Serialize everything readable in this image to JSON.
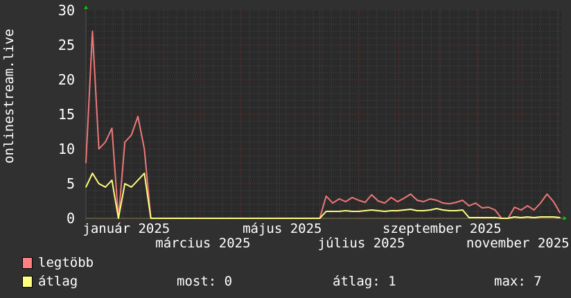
{
  "chart_data": {
    "type": "line",
    "ylabel": "onlinestream.live",
    "ylim": [
      0,
      30
    ],
    "yticks": [
      0,
      5,
      10,
      15,
      20,
      25,
      30
    ],
    "xlim": [
      "2024-12-03",
      "2025-12-04"
    ],
    "xticks": [
      {
        "date": "2025-01-01",
        "label": "január 2025"
      },
      {
        "date": "2025-03-01",
        "label": "március 2025"
      },
      {
        "date": "2025-05-01",
        "label": "május 2025"
      },
      {
        "date": "2025-07-01",
        "label": "július 2025"
      },
      {
        "date": "2025-09-01",
        "label": "szeptember 2025"
      },
      {
        "date": "2025-11-01",
        "label": "november 2025"
      }
    ],
    "grid": true,
    "legend_position": "bottom-left",
    "x": [
      "2024-12-03",
      "2024-12-08",
      "2024-12-13",
      "2024-12-18",
      "2024-12-23",
      "2024-12-28",
      "2025-01-02",
      "2025-01-07",
      "2025-01-12",
      "2025-01-17",
      "2025-01-22",
      "2025-01-27",
      "2025-02-01",
      "2025-02-06",
      "2025-02-11",
      "2025-02-16",
      "2025-02-21",
      "2025-02-26",
      "2025-03-03",
      "2025-03-08",
      "2025-03-13",
      "2025-03-18",
      "2025-03-23",
      "2025-03-28",
      "2025-04-02",
      "2025-04-07",
      "2025-04-12",
      "2025-04-17",
      "2025-04-22",
      "2025-04-27",
      "2025-05-02",
      "2025-05-07",
      "2025-05-12",
      "2025-05-17",
      "2025-05-22",
      "2025-05-27",
      "2025-06-01",
      "2025-06-06",
      "2025-06-11",
      "2025-06-16",
      "2025-06-21",
      "2025-06-26",
      "2025-07-01",
      "2025-07-06",
      "2025-07-11",
      "2025-07-16",
      "2025-07-21",
      "2025-07-26",
      "2025-07-31",
      "2025-08-05",
      "2025-08-10",
      "2025-08-15",
      "2025-08-20",
      "2025-08-25",
      "2025-08-30",
      "2025-09-04",
      "2025-09-09",
      "2025-09-14",
      "2025-09-19",
      "2025-09-24",
      "2025-09-29",
      "2025-10-04",
      "2025-10-09",
      "2025-10-14",
      "2025-10-19",
      "2025-10-24",
      "2025-10-29",
      "2025-11-03",
      "2025-11-08",
      "2025-11-13",
      "2025-11-18",
      "2025-11-23",
      "2025-11-28",
      "2025-12-03"
    ],
    "series": [
      {
        "name": "legtöbb",
        "color": "#f07878",
        "swatch": "#ff8080",
        "values": [
          8,
          27,
          10,
          11,
          13,
          0,
          11,
          12,
          14.7,
          10,
          0,
          0,
          0,
          0,
          0,
          0,
          0,
          0,
          0,
          0,
          0,
          0,
          0,
          0,
          0,
          0,
          0,
          0,
          0,
          0,
          0,
          0,
          0,
          0,
          0,
          0,
          0,
          3.2,
          2.2,
          2.8,
          2.4,
          3,
          2.6,
          2.3,
          3.4,
          2.5,
          2.2,
          3,
          2.4,
          2.9,
          3.5,
          2.6,
          2.4,
          2.8,
          2.6,
          2.2,
          2.1,
          2.3,
          2.6,
          1.8,
          2.2,
          1.5,
          1.6,
          1.2,
          0,
          0,
          1.6,
          1.2,
          1.8,
          1.2,
          2.2,
          3.5,
          2.4,
          0.8
        ]
      },
      {
        "name": "átlag",
        "color": "#ffff80",
        "swatch": "#ffff80",
        "values": [
          4.5,
          6.5,
          5,
          4.5,
          5.5,
          0,
          5,
          4.5,
          5.5,
          6.5,
          0,
          0,
          0,
          0,
          0,
          0,
          0,
          0,
          0,
          0,
          0,
          0,
          0,
          0,
          0,
          0,
          0,
          0,
          0,
          0,
          0,
          0,
          0,
          0,
          0,
          0,
          0,
          1,
          1,
          1,
          1.1,
          1,
          1,
          1.1,
          1.2,
          1.1,
          1,
          1.1,
          1.1,
          1.2,
          1.3,
          1.1,
          1.1,
          1.2,
          1.4,
          1.2,
          1.1,
          1.1,
          1.2,
          0.1,
          0.1,
          0.1,
          0.1,
          0.1,
          0,
          0,
          0.2,
          0.1,
          0.2,
          0.1,
          0.2,
          0.2,
          0.2,
          0.1
        ]
      }
    ]
  },
  "legend": {
    "max_label": "legtöbb",
    "avg_label": "átlag",
    "now_text": "most: 0",
    "avg_text": "átlag: 1",
    "max_text": "max: 7"
  }
}
